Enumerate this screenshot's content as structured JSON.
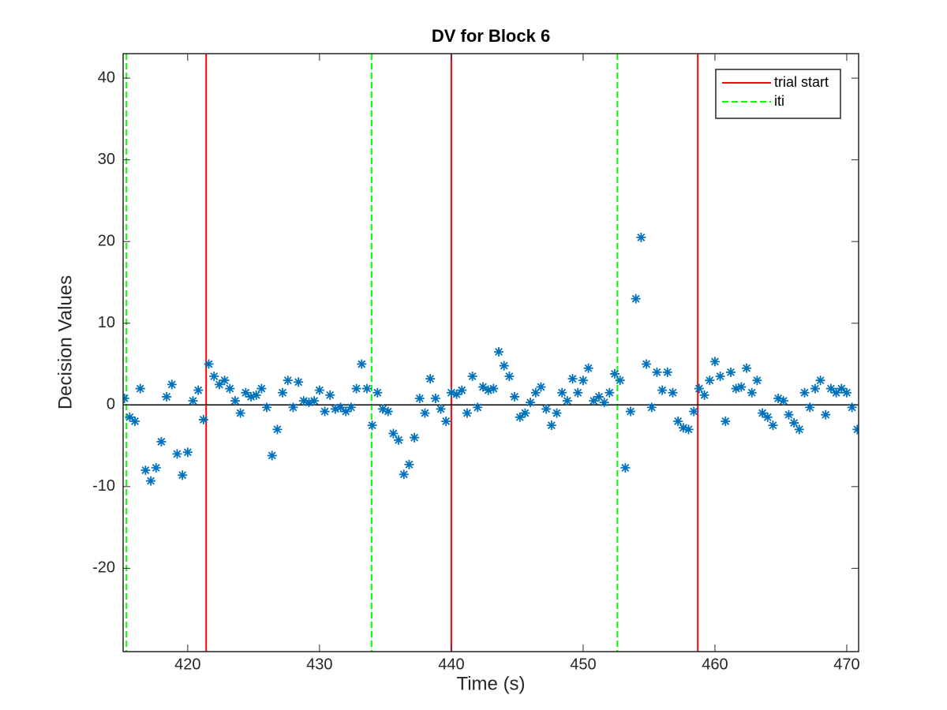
{
  "chart_data": {
    "type": "scatter",
    "title": "DV for Block 6",
    "x_label": "Time (s)",
    "y_label": "Decision Values",
    "xlim": [
      415.1,
      470.9
    ],
    "ylim": [
      -30.2,
      43
    ],
    "xticks": [
      420,
      430,
      440,
      450,
      460,
      470
    ],
    "yticks": [
      -20,
      -10,
      0,
      10,
      20,
      30,
      40
    ],
    "hline": 0,
    "legend": "upper right",
    "points": {
      "color": "#0072bd",
      "x": [
        415.2,
        415.6,
        416.0,
        416.4,
        416.8,
        417.2,
        417.6,
        418.0,
        418.4,
        418.8,
        419.2,
        419.6,
        420.0,
        420.4,
        420.8,
        421.2,
        421.6,
        422.0,
        422.4,
        422.8,
        423.2,
        423.6,
        424.0,
        424.4,
        424.8,
        425.2,
        425.6,
        426.0,
        426.4,
        426.8,
        427.2,
        427.6,
        428.0,
        428.4,
        428.8,
        429.2,
        429.6,
        430.0,
        430.4,
        430.8,
        431.2,
        431.6,
        432.0,
        432.4,
        432.8,
        433.2,
        433.6,
        434.0,
        434.4,
        434.8,
        435.2,
        435.6,
        436.0,
        436.4,
        436.8,
        437.2,
        437.6,
        438.0,
        438.4,
        438.8,
        439.2,
        439.6,
        440.0,
        440.4,
        440.8,
        441.2,
        441.6,
        442.0,
        442.4,
        442.8,
        443.2,
        443.6,
        444.0,
        444.4,
        444.8,
        445.2,
        445.6,
        446.0,
        446.4,
        446.8,
        447.2,
        447.6,
        448.0,
        448.4,
        448.8,
        449.2,
        449.6,
        450.0,
        450.4,
        450.8,
        451.2,
        451.6,
        452.0,
        452.4,
        452.8,
        453.2,
        453.6,
        454.0,
        454.4,
        454.8,
        455.2,
        455.6,
        456.0,
        456.4,
        456.8,
        457.2,
        457.6,
        458.0,
        458.4,
        458.8,
        459.2,
        459.6,
        460.0,
        460.4,
        460.8,
        461.2,
        461.6,
        462.0,
        462.4,
        462.8,
        463.2,
        463.6,
        464.0,
        464.4,
        464.8,
        465.2,
        465.6,
        466.0,
        466.4,
        466.8,
        467.2,
        467.6,
        468.0,
        468.4,
        468.8,
        469.2,
        469.6,
        470.0,
        470.4,
        470.8
      ],
      "values": [
        0.8,
        -1.5,
        -2,
        2,
        -8,
        -9.3,
        -7.7,
        -4.5,
        1,
        2.5,
        -6,
        -8.6,
        -5.8,
        0.5,
        1.8,
        -1.8,
        5,
        3.5,
        2.5,
        3,
        2,
        0.5,
        -1,
        1.5,
        1,
        1.2,
        2,
        -0.3,
        -6.2,
        -3,
        1.5,
        3,
        -0.3,
        2.8,
        0.5,
        0.3,
        0.5,
        1.8,
        -0.8,
        1.2,
        -0.5,
        -0.3,
        -0.8,
        -0.3,
        2,
        5,
        2,
        -2.5,
        1.5,
        -0.5,
        -0.8,
        -3.5,
        -4.3,
        -8.5,
        -7.3,
        -4,
        0.8,
        -1,
        3.2,
        0.8,
        -0.5,
        -2,
        1.5,
        1.3,
        1.8,
        -1,
        3.5,
        -0.3,
        2.2,
        1.8,
        2,
        6.5,
        4.8,
        3.5,
        1,
        -1.5,
        -1,
        0.3,
        1.5,
        2.2,
        -0.5,
        -2.5,
        -1,
        1.5,
        0.5,
        3.2,
        1.5,
        3,
        4.5,
        0.5,
        1,
        0.3,
        1.5,
        3.8,
        3,
        -7.7,
        -0.8,
        13,
        20.5,
        5,
        -0.3,
        4,
        1.8,
        4,
        1.5,
        -2,
        -2.8,
        -3,
        -0.8,
        2,
        1.2,
        3,
        5.3,
        3.5,
        -2,
        4,
        2,
        2.2,
        4.5,
        1.5,
        3,
        -1,
        -1.5,
        -2.5,
        0.8,
        0.5,
        -1.2,
        -2.2,
        -3,
        1.5,
        -0.3,
        2,
        3,
        -1.2,
        2,
        1.5,
        2,
        1.5,
        -0.3,
        -3
      ]
    },
    "series": [
      {
        "name": "trial start",
        "color": "#ff0000",
        "dashed": false,
        "x": [
          421.4,
          440.0,
          458.7
        ]
      },
      {
        "name": "iti",
        "color": "#00ff00",
        "dashed": true,
        "x": [
          415.35,
          433.95,
          452.6
        ]
      }
    ]
  }
}
